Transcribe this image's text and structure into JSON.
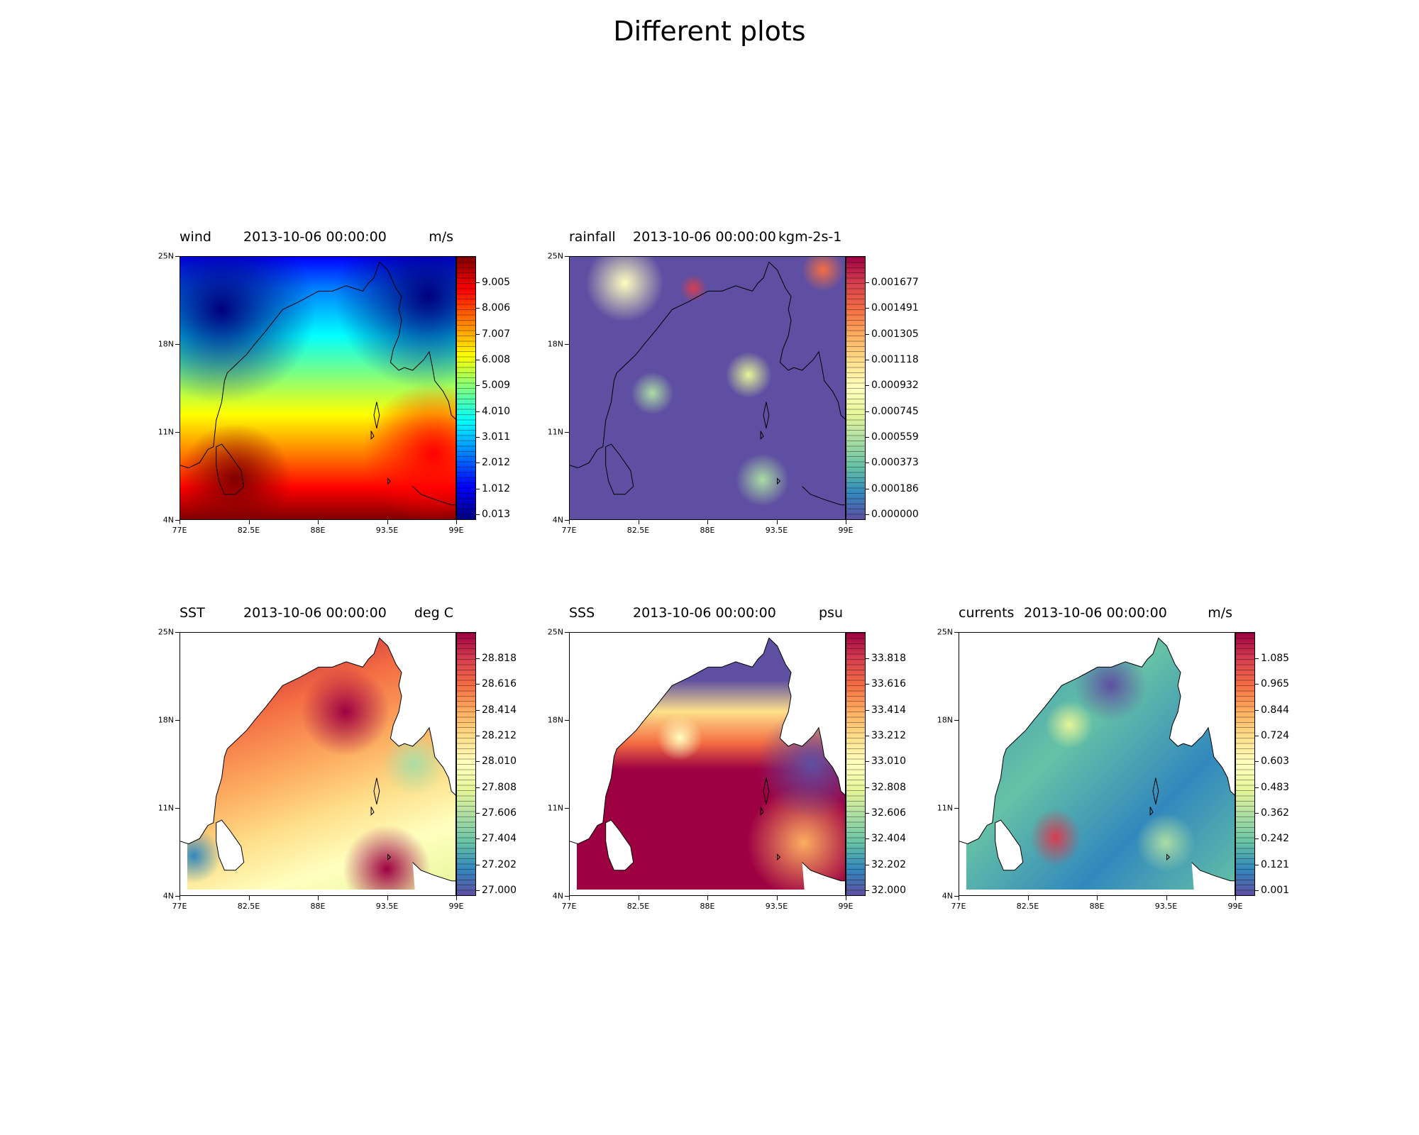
{
  "figure": {
    "title": "Different plots"
  },
  "chart_data": [
    {
      "type": "heatmap",
      "variable": "wind",
      "date": "2013-10-06 00:00:00",
      "unit": "m/s",
      "lon_ticks": [
        "77E",
        "82.5E",
        "88E",
        "93.5E",
        "99E"
      ],
      "lat_ticks": [
        "25N",
        "18N",
        "11N",
        "4N"
      ],
      "colorbar_labels": [
        "9.005",
        "8.006",
        "7.007",
        "6.008",
        "5.009",
        "4.010",
        "3.011",
        "2.012",
        "1.012",
        "0.013"
      ],
      "colormap": "jet",
      "colors": [
        "#00007f",
        "#0000ff",
        "#007fff",
        "#00ffff",
        "#7fff7f",
        "#ffff00",
        "#ff7f00",
        "#ff0000",
        "#7f0000"
      ]
    },
    {
      "type": "heatmap",
      "variable": "rainfall",
      "date": "2013-10-06 00:00:00",
      "unit": "kgm-2s-1",
      "lon_ticks": [
        "77E",
        "82.5E",
        "88E",
        "93.5E",
        "99E"
      ],
      "lat_ticks": [
        "25N",
        "18N",
        "11N",
        "4N"
      ],
      "colorbar_labels": [
        "0.001677",
        "0.001491",
        "0.001305",
        "0.001118",
        "0.000932",
        "0.000745",
        "0.000559",
        "0.000373",
        "0.000186",
        "0.000000"
      ],
      "colormap": "Spectral_r",
      "colors": [
        "#5e4fa2",
        "#3288bd",
        "#66c2a5",
        "#abdda4",
        "#e6f598",
        "#ffffbf",
        "#fee08b",
        "#fdae61",
        "#f46d43",
        "#d53e4f",
        "#9e0142"
      ]
    },
    {
      "type": "heatmap",
      "variable": "SST",
      "date": "2013-10-06 00:00:00",
      "unit": "deg C",
      "lon_ticks": [
        "77E",
        "82.5E",
        "88E",
        "93.5E",
        "99E"
      ],
      "lat_ticks": [
        "25N",
        "18N",
        "11N",
        "4N"
      ],
      "colorbar_labels": [
        "28.818",
        "28.616",
        "28.414",
        "28.212",
        "28.010",
        "27.808",
        "27.606",
        "27.404",
        "27.202",
        "27.000"
      ],
      "colormap": "Spectral_r",
      "colors": [
        "#5e4fa2",
        "#3288bd",
        "#66c2a5",
        "#abdda4",
        "#e6f598",
        "#ffffbf",
        "#fee08b",
        "#fdae61",
        "#f46d43",
        "#d53e4f",
        "#9e0142"
      ]
    },
    {
      "type": "heatmap",
      "variable": "SSS",
      "date": "2013-10-06 00:00:00",
      "unit": "psu",
      "lon_ticks": [
        "77E",
        "82.5E",
        "88E",
        "93.5E",
        "99E"
      ],
      "lat_ticks": [
        "25N",
        "18N",
        "11N",
        "4N"
      ],
      "colorbar_labels": [
        "33.818",
        "33.616",
        "33.414",
        "33.212",
        "33.010",
        "32.808",
        "32.606",
        "32.404",
        "32.202",
        "32.000"
      ],
      "colormap": "Spectral_r",
      "colors": [
        "#5e4fa2",
        "#3288bd",
        "#66c2a5",
        "#abdda4",
        "#e6f598",
        "#ffffbf",
        "#fee08b",
        "#fdae61",
        "#f46d43",
        "#d53e4f",
        "#9e0142"
      ]
    },
    {
      "type": "heatmap",
      "variable": "currents",
      "date": "2013-10-06 00:00:00",
      "unit": "m/s",
      "lon_ticks": [
        "77E",
        "82.5E",
        "88E",
        "93.5E",
        "99E"
      ],
      "lat_ticks": [
        "25N",
        "18N",
        "11N",
        "4N"
      ],
      "colorbar_labels": [
        "1.085",
        "0.965",
        "0.844",
        "0.724",
        "0.603",
        "0.483",
        "0.362",
        "0.242",
        "0.121",
        "0.001"
      ],
      "colormap": "Spectral_r",
      "colors": [
        "#5e4fa2",
        "#3288bd",
        "#66c2a5",
        "#abdda4",
        "#e6f598",
        "#ffffbf",
        "#fee08b",
        "#fdae61",
        "#f46d43",
        "#d53e4f",
        "#9e0142"
      ]
    }
  ]
}
